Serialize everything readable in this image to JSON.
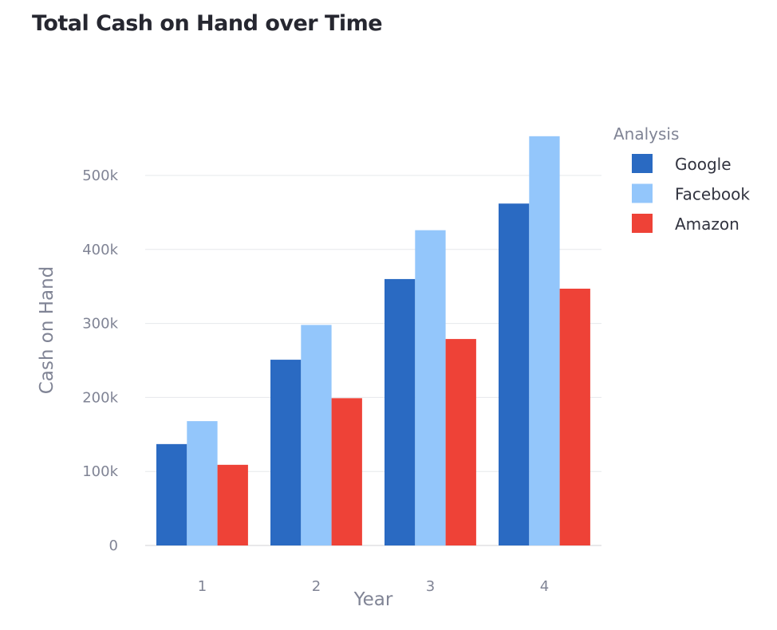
{
  "chart_data": {
    "type": "bar",
    "title": "Total Cash on Hand over Time",
    "xlabel": "Year",
    "ylabel": "Cash on Hand",
    "categories": [
      "1",
      "2",
      "3",
      "4"
    ],
    "series": [
      {
        "name": "Google",
        "color": "#2a6ac2",
        "values": [
          137000,
          251000,
          360000,
          462000
        ]
      },
      {
        "name": "Facebook",
        "color": "#93c6fb",
        "values": [
          168000,
          298000,
          426000,
          553000
        ]
      },
      {
        "name": "Amazon",
        "color": "#ee4237",
        "values": [
          109000,
          199000,
          279000,
          347000
        ]
      }
    ],
    "ylim": [
      0,
      550000
    ],
    "yticks": [
      0,
      100000,
      200000,
      300000,
      400000,
      500000
    ],
    "ytick_labels": [
      "0",
      "100k",
      "200k",
      "300k",
      "400k",
      "500k"
    ],
    "grid": true,
    "legend_title": "Analysis",
    "legend_position": "top-right"
  }
}
